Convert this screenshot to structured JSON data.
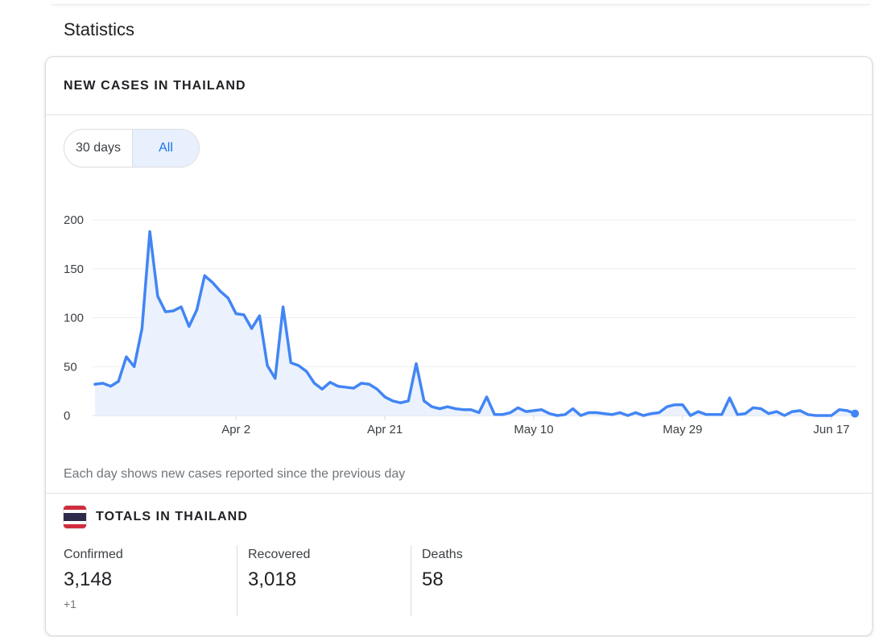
{
  "page": {
    "section_title": "Statistics"
  },
  "card": {
    "title": "NEW CASES IN THAILAND",
    "toggle": {
      "option_30": "30 days",
      "option_all": "All",
      "selected": "All"
    },
    "footnote": "Each day shows new cases reported since the previous day"
  },
  "totals": {
    "title": "TOTALS IN THAILAND",
    "flag_icon": "thailand-flag-icon",
    "confirmed": {
      "label": "Confirmed",
      "value": "3,148",
      "delta": "+1"
    },
    "recovered": {
      "label": "Recovered",
      "value": "3,018"
    },
    "deaths": {
      "label": "Deaths",
      "value": "58"
    }
  },
  "colors": {
    "line": "#4285f4",
    "area_fill": "#e8f0fe",
    "toggle_selected_bg": "#e8f0fe",
    "toggle_selected_text": "#1a73e8",
    "flag_red": "#d12c3c",
    "flag_white": "#ffffff",
    "flag_blue": "#2d2a4a"
  },
  "chart_data": {
    "type": "area",
    "title": "",
    "xlabel": "",
    "ylabel": "",
    "ylim": [
      0,
      200
    ],
    "y_ticks": [
      0,
      50,
      100,
      150,
      200
    ],
    "x_tick_labels": [
      {
        "label": "Apr 2",
        "index": 18
      },
      {
        "label": "Apr 21",
        "index": 37
      },
      {
        "label": "May 10",
        "index": 56
      },
      {
        "label": "May 29",
        "index": 75
      },
      {
        "label": "Jun 17",
        "index": 94
      }
    ],
    "grid": true,
    "series": [
      {
        "values": [
          32,
          33,
          30,
          35,
          60,
          50,
          89,
          188,
          122,
          106,
          107,
          111,
          91,
          108,
          143,
          136,
          127,
          120,
          104,
          103,
          89,
          102,
          51,
          38,
          111,
          54,
          51,
          45,
          33,
          27,
          34,
          30,
          29,
          28,
          33,
          32,
          27,
          19,
          15,
          13,
          15,
          53,
          15,
          9,
          7,
          9,
          7,
          6,
          6,
          3,
          19,
          1,
          1,
          3,
          8,
          4,
          5,
          6,
          2,
          0,
          1,
          7,
          0,
          3,
          3,
          2,
          1,
          3,
          0,
          3,
          0,
          2,
          3,
          9,
          11,
          11,
          0,
          4,
          1,
          1,
          1,
          18,
          1,
          2,
          8,
          7,
          2,
          4,
          0,
          4,
          5,
          1,
          0,
          0,
          0,
          6,
          5,
          2
        ]
      }
    ]
  }
}
